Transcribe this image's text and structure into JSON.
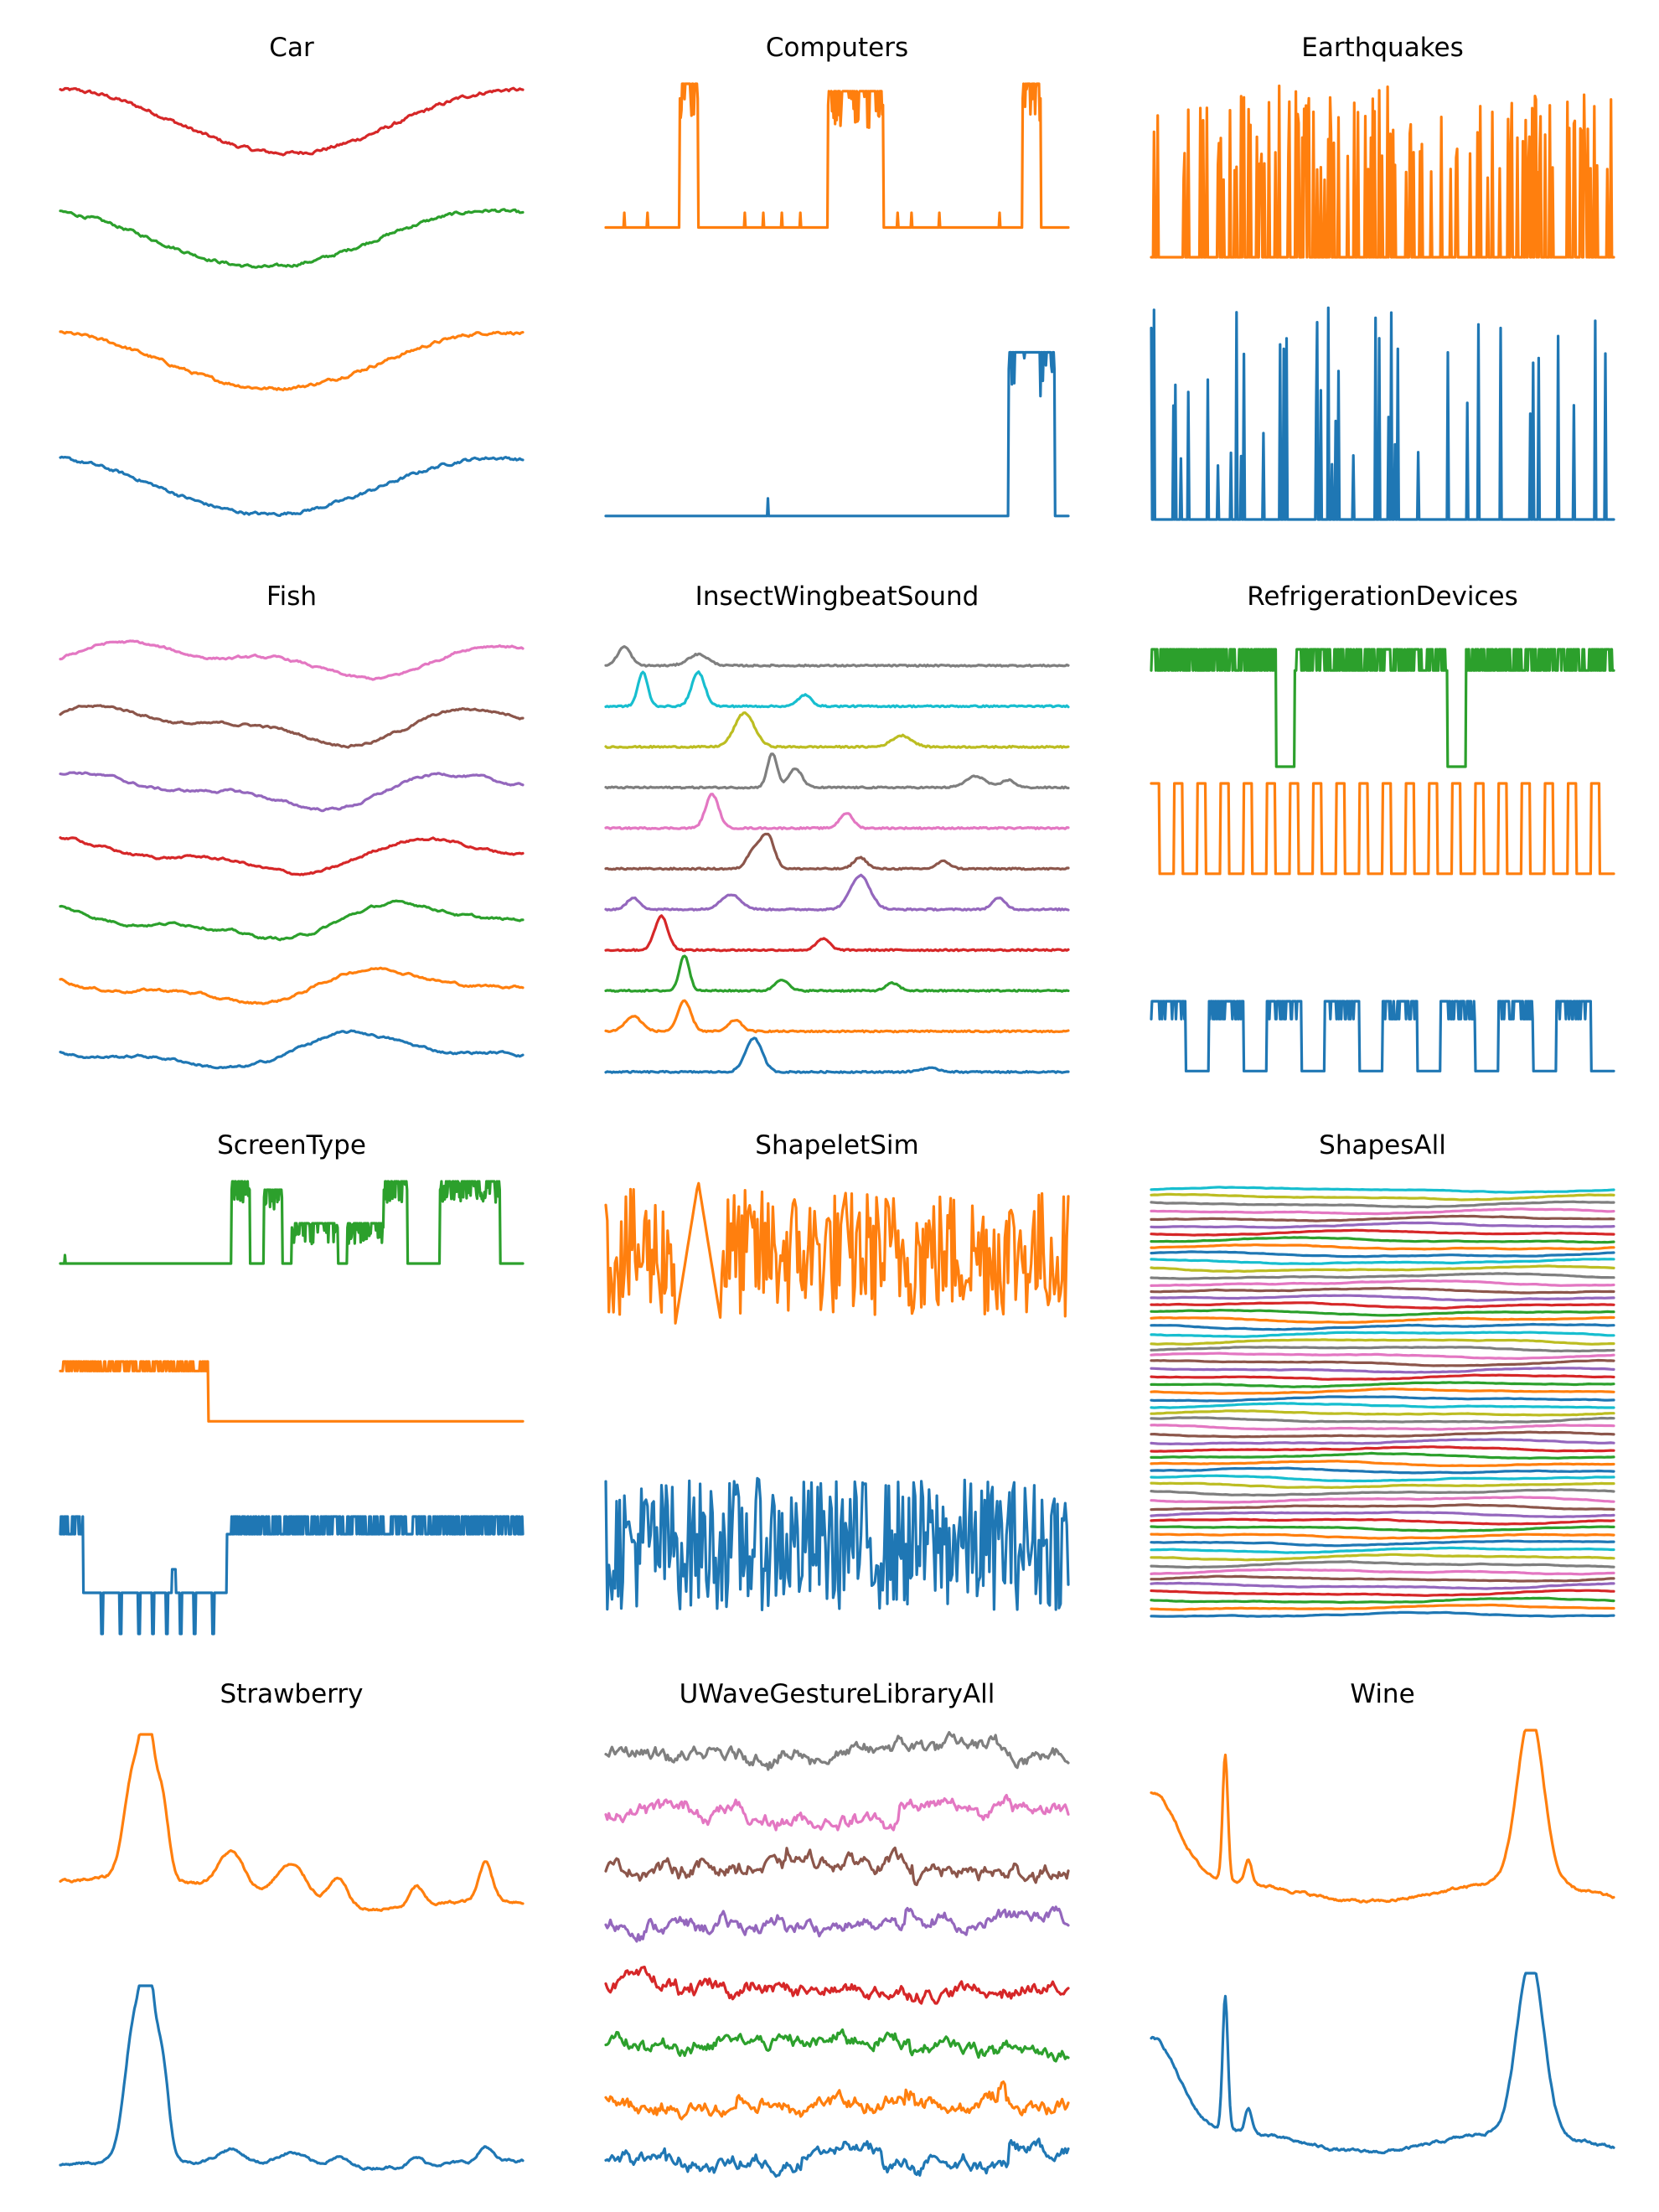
{
  "palette": [
    "#1f77b4",
    "#ff7f0e",
    "#2ca02c",
    "#d62728",
    "#9467bd",
    "#8c564b",
    "#e377c2",
    "#7f7f7f",
    "#bcbd22",
    "#17becf"
  ],
  "chart_data": [
    {
      "type": "line",
      "title": "Car",
      "shape": "sine",
      "series_count": 4,
      "grid": false,
      "axes": "off"
    },
    {
      "type": "line",
      "title": "Computers",
      "shape": "step-bursts",
      "series_count": 2,
      "grid": false,
      "axes": "off"
    },
    {
      "type": "line",
      "title": "Earthquakes",
      "shape": "spikes",
      "series_count": 2,
      "grid": false,
      "axes": "off"
    },
    {
      "type": "line",
      "title": "Fish",
      "shape": "contour",
      "series_count": 7,
      "grid": false,
      "axes": "off"
    },
    {
      "type": "line",
      "title": "InsectWingbeatSound",
      "shape": "peaks",
      "series_count": 11,
      "grid": false,
      "axes": "off"
    },
    {
      "type": "line",
      "title": "RefrigerationDevices",
      "shape": "periodic-pulses",
      "series_count": 3,
      "grid": false,
      "axes": "off"
    },
    {
      "type": "line",
      "title": "ScreenType",
      "shape": "step-bursts",
      "series_count": 3,
      "grid": false,
      "axes": "off"
    },
    {
      "type": "line",
      "title": "ShapeletSim",
      "shape": "noise",
      "series_count": 2,
      "grid": false,
      "axes": "off"
    },
    {
      "type": "line",
      "title": "ShapesAll",
      "shape": "contour",
      "series_count": 60,
      "grid": false,
      "axes": "off"
    },
    {
      "type": "line",
      "title": "Strawberry",
      "shape": "spectrum",
      "series_count": 2,
      "grid": false,
      "axes": "off"
    },
    {
      "type": "line",
      "title": "UWaveGestureLibraryAll",
      "shape": "gesture",
      "series_count": 8,
      "grid": false,
      "axes": "off"
    },
    {
      "type": "line",
      "title": "Wine",
      "shape": "spectrum",
      "series_count": 2,
      "grid": false,
      "axes": "off"
    }
  ]
}
